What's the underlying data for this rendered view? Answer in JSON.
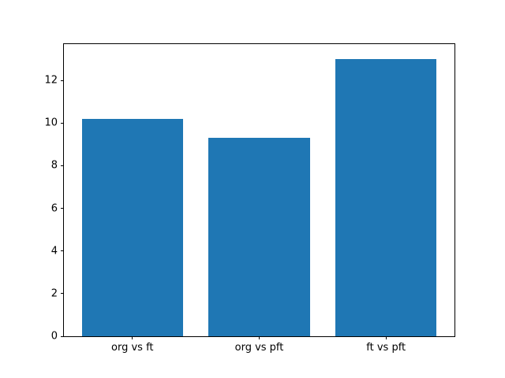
{
  "chart_data": {
    "type": "bar",
    "categories": [
      "org vs ft",
      "org vs pft",
      "ft vs pft"
    ],
    "values": [
      10.2,
      9.3,
      13.0
    ],
    "title": "",
    "xlabel": "",
    "ylabel": "",
    "ylim": [
      0,
      13.7
    ],
    "xlim": [
      -0.54,
      2.54
    ],
    "bar_width": 0.8,
    "yticks": [
      0,
      2,
      4,
      6,
      8,
      10,
      12
    ],
    "bar_color": "#1f77b4",
    "axis_color": "#000000",
    "background_color": "#ffffff",
    "grid": false,
    "legend": null
  }
}
